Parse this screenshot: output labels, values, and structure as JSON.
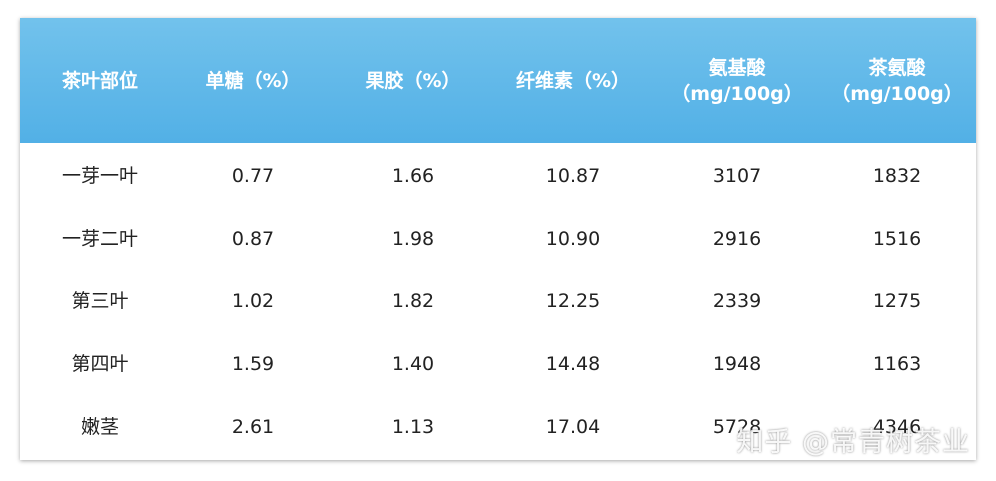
{
  "table": {
    "headers": [
      [
        "茶叶部位"
      ],
      [
        "单糖（%）"
      ],
      [
        "果胶（%）"
      ],
      [
        "纤维素（%）"
      ],
      [
        "氨基酸",
        "（mg/100g）"
      ],
      [
        "茶氨酸",
        "（mg/100g）"
      ]
    ],
    "rows": [
      [
        "一芽一叶",
        "0.77",
        "1.66",
        "10.87",
        "3107",
        "1832"
      ],
      [
        "一芽二叶",
        "0.87",
        "1.98",
        "10.90",
        "2916",
        "1516"
      ],
      [
        "第三叶",
        "1.02",
        "1.82",
        "12.25",
        "2339",
        "1275"
      ],
      [
        "第四叶",
        "1.59",
        "1.40",
        "14.48",
        "1948",
        "1163"
      ],
      [
        "嫩茎",
        "2.61",
        "1.13",
        "17.04",
        "5728",
        "4346"
      ]
    ]
  },
  "watermark": "知乎 @常青树茶业"
}
